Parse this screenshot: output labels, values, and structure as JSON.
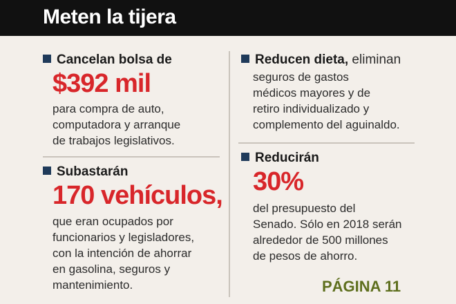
{
  "header": {
    "title": "Meten la tijera"
  },
  "items": [
    {
      "heading": "Cancelan bolsa de",
      "highlight": "$392 mil",
      "lines": [
        "para compra de auto,",
        "computadora y arranque",
        "de trabajos legislativos."
      ]
    },
    {
      "heading": "Subastarán",
      "highlight": "170 vehículos,",
      "lines": [
        "que eran ocupados por",
        "funcionarios y legisladores,",
        "con la intención de ahorrar",
        "en gasolina, seguros y",
        "mantenimiento."
      ]
    },
    {
      "heading_bold": "Reducen dieta,",
      "heading_rest": " eliminan",
      "lines": [
        "seguros de gastos",
        "médicos mayores y de",
        "retiro individualizado y",
        "complemento del aguinaldo."
      ]
    },
    {
      "heading": "Reducirán",
      "highlight": "30%",
      "lines": [
        "del presupuesto del",
        "Senado. Sólo en 2018 serán",
        "alrededor de 500 millones",
        "de pesos de ahorro."
      ]
    }
  ],
  "footer": {
    "page_ref": "PÁGINA 11"
  },
  "colors": {
    "accent": "#d8262a",
    "bullet": "#1f3a5a",
    "page_ref": "#5e6f1e",
    "header_bg": "#111111"
  }
}
